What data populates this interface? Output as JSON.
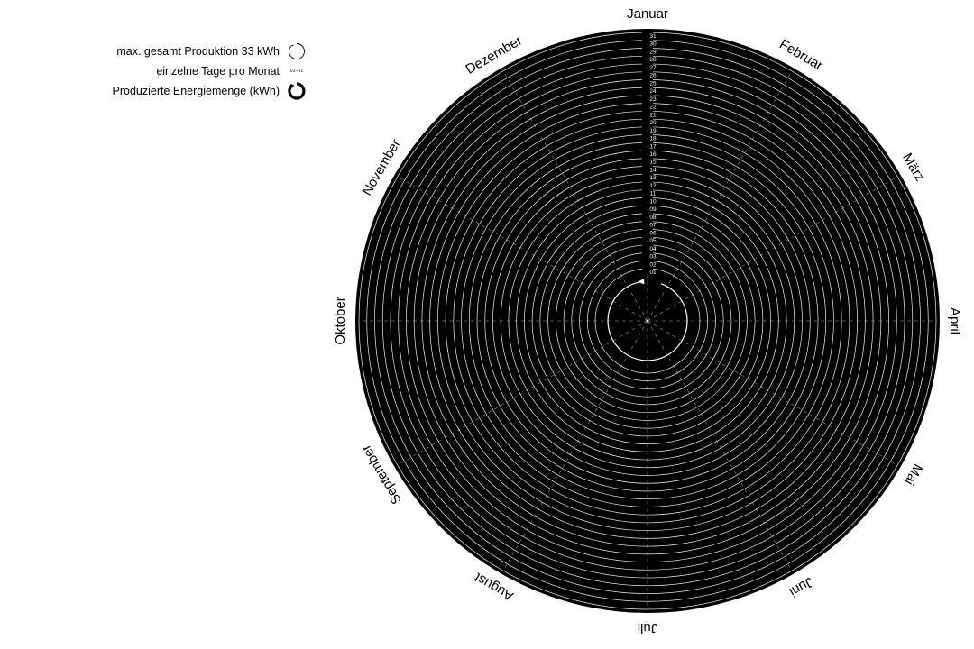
{
  "legend": {
    "max_label": "max. gesamt Produktion 33 kWh",
    "days_label": "einzelne Tage pro Monat",
    "days_range": "01–31",
    "energy_label": "Produzierte Energiemenge (kWh)"
  },
  "colors": {
    "background": "#000000",
    "ring": "#ffffff",
    "text": "#000000",
    "day_text": "#ffffff"
  },
  "chart_data": {
    "type": "radial",
    "months": [
      "Januar",
      "Februar",
      "März",
      "April",
      "Mai",
      "Juni",
      "Juli",
      "August",
      "September",
      "Oktober",
      "November",
      "Dezember"
    ],
    "days": [
      "01",
      "02",
      "03",
      "04",
      "05",
      "06",
      "07",
      "08",
      "09",
      "10",
      "11",
      "12",
      "13",
      "14",
      "15",
      "16",
      "17",
      "18",
      "19",
      "20",
      "21",
      "22",
      "23",
      "24",
      "25",
      "26",
      "27",
      "28",
      "29",
      "30",
      "31"
    ],
    "max_total_kwh": 33,
    "series": [
      {
        "values": []
      }
    ]
  }
}
